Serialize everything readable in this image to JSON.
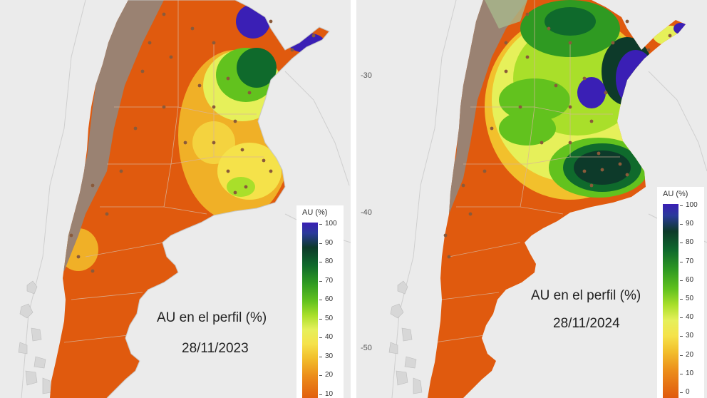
{
  "left_map": {
    "title": "AU en el perfil (%)",
    "date": "28/11/2023",
    "legend": {
      "title": "AU (%)",
      "ticks": [
        "100",
        "90",
        "80",
        "70",
        "60",
        "50",
        "40",
        "30",
        "20",
        "10"
      ]
    }
  },
  "right_map": {
    "title": "AU en el perfil (%)",
    "date": "28/11/2024",
    "legend": {
      "title": "AU (%)",
      "ticks": [
        "100",
        "90",
        "80",
        "70",
        "60",
        "50",
        "40",
        "30",
        "20",
        "10",
        "0"
      ]
    },
    "y_axis": [
      "-30",
      "-40",
      "-50"
    ]
  },
  "colors": {
    "dry": "#e05a0e",
    "mid": "#f2c02c",
    "humid": "#2f9a22",
    "very_humid": "#0d3a2a",
    "saturated": "#3a1fb5",
    "no_data": "#9a8272",
    "background": "#ebebeb"
  }
}
